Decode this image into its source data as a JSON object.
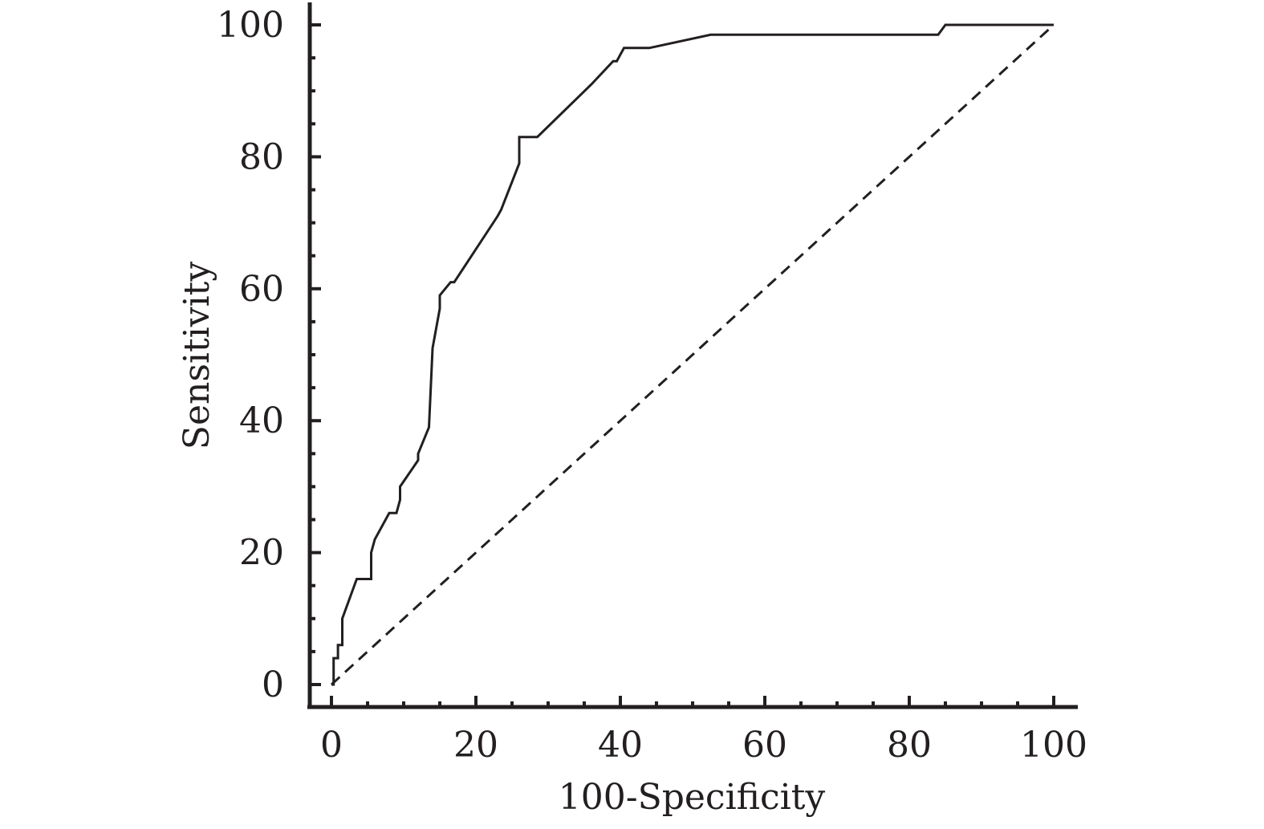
{
  "chart_data": {
    "type": "line",
    "title": "",
    "xlabel": "100-Specificity",
    "ylabel": "Sensitivity",
    "xlim": [
      0,
      100
    ],
    "ylim": [
      0,
      100
    ],
    "x_ticks": [
      "0",
      "20",
      "40",
      "60",
      "80",
      "100"
    ],
    "y_ticks": [
      "0",
      "20",
      "40",
      "60",
      "80",
      "100"
    ],
    "grid": false,
    "legend": "none",
    "colors": {
      "axis": "#231f20",
      "curve": "#231f20",
      "reference": "#231f20"
    },
    "series": [
      {
        "style": "solid",
        "x": [
          0,
          0.3,
          0.3,
          0.9,
          0.9,
          1.5,
          1.5,
          3.5,
          5.5,
          5.5,
          6,
          6,
          8,
          8.5,
          9,
          9.5,
          9.5,
          12,
          12,
          13.5,
          14,
          15,
          15,
          16.5,
          17,
          23,
          23.5,
          26,
          26,
          28.5,
          36,
          39,
          39.5,
          40.5,
          44,
          52.5,
          84,
          85,
          100
        ],
        "y": [
          0,
          0,
          4,
          4,
          6,
          6,
          10,
          16,
          16,
          20,
          22,
          22,
          26,
          26,
          26,
          28,
          30,
          34,
          35,
          39,
          51,
          57,
          59,
          61,
          61,
          71,
          72,
          79,
          83,
          83,
          91,
          94.5,
          94.5,
          96.5,
          96.5,
          98.5,
          98.5,
          100,
          100
        ]
      },
      {
        "style": "dashed",
        "x": [
          0,
          100
        ],
        "y": [
          0,
          100
        ]
      }
    ]
  }
}
